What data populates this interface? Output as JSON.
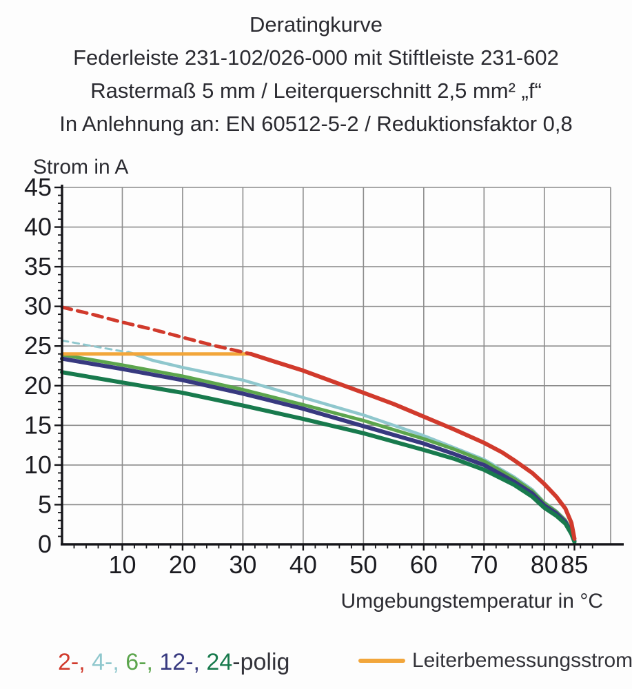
{
  "header": {
    "title": "Deratingkurve",
    "subtitle1": "Federleiste 231-102/026-000 mit Stiftleiste 231-602",
    "subtitle2": "Rastermaß 5 mm / Leiterquerschnitt 2,5 mm² „f“",
    "subtitle3": "In Anlehnung an: EN 60512-5-2 / Reduktionsfaktor 0,8"
  },
  "chart_data": {
    "type": "line",
    "title": "Deratingkurve",
    "xlabel": "Umgebungstemperatur in °C",
    "ylabel": "Strom in A",
    "xlim": [
      0,
      91
    ],
    "ylim": [
      0,
      45
    ],
    "x_major_ticks": [
      10,
      20,
      30,
      40,
      50,
      60,
      70,
      80,
      85
    ],
    "x_gridlines": [
      10,
      20,
      30,
      40,
      50,
      60,
      70,
      80
    ],
    "x_minor_tick_step": 2,
    "y_major_ticks": [
      0,
      5,
      10,
      15,
      20,
      25,
      30,
      35,
      40,
      45
    ],
    "y_minor_tick_step": 1,
    "grid": true,
    "grid_color": "#8c8c8c",
    "axis_color": "#151519",
    "tick_label_color": "#1b1b20",
    "series": [
      {
        "name": "2-polig",
        "color": "#d13a2c",
        "width": 6,
        "z": 1,
        "dash_pattern": "14 9",
        "dashed_width": 5,
        "dashed_points": [
          [
            0,
            29.9
          ],
          [
            5,
            29.0
          ],
          [
            10,
            28.0
          ],
          [
            15,
            27.1
          ],
          [
            20,
            26.1
          ],
          [
            25,
            25.1
          ],
          [
            31.3,
            24.0
          ]
        ],
        "points": [
          [
            31.3,
            24.0
          ],
          [
            35,
            23.1
          ],
          [
            40,
            21.9
          ],
          [
            45,
            20.5
          ],
          [
            50,
            19.1
          ],
          [
            55,
            17.7
          ],
          [
            60,
            16.1
          ],
          [
            65,
            14.5
          ],
          [
            70,
            12.8
          ],
          [
            73,
            11.6
          ],
          [
            75,
            10.6
          ],
          [
            78,
            9.0
          ],
          [
            80,
            7.6
          ],
          [
            82,
            6.0
          ],
          [
            83.5,
            4.5
          ],
          [
            84.5,
            2.7
          ],
          [
            85,
            0.7
          ]
        ]
      },
      {
        "name": "4-polig",
        "color": "#8fc7cd",
        "width": 4.5,
        "z": 0,
        "dash_pattern": "9 7",
        "dashed_width": 3,
        "dashed_points": [
          [
            0,
            25.7
          ],
          [
            5,
            25.0
          ],
          [
            11,
            24.2
          ]
        ],
        "points": [
          [
            11,
            24.2
          ],
          [
            15,
            23.2
          ],
          [
            20,
            22.3
          ],
          [
            25,
            21.5
          ],
          [
            30,
            20.7
          ],
          [
            35,
            19.6
          ],
          [
            40,
            18.5
          ],
          [
            45,
            17.4
          ],
          [
            50,
            16.3
          ],
          [
            55,
            15.0
          ],
          [
            60,
            13.7
          ],
          [
            65,
            12.2
          ],
          [
            70,
            10.7
          ],
          [
            75,
            8.5
          ],
          [
            78,
            6.9
          ],
          [
            80,
            5.3
          ],
          [
            82,
            4.2
          ],
          [
            83.5,
            3.1
          ],
          [
            84.5,
            1.7
          ],
          [
            85,
            0.4
          ]
        ]
      },
      {
        "name": "6-polig",
        "color": "#5ca54d",
        "width": 5,
        "z": 0,
        "points": [
          [
            0,
            23.9
          ],
          [
            10,
            22.6
          ],
          [
            20,
            21.2
          ],
          [
            30,
            19.5
          ],
          [
            40,
            17.6
          ],
          [
            50,
            15.6
          ],
          [
            60,
            13.3
          ],
          [
            65,
            12.0
          ],
          [
            70,
            10.5
          ],
          [
            75,
            8.3
          ],
          [
            78,
            6.7
          ],
          [
            80,
            5.2
          ],
          [
            82,
            4.1
          ],
          [
            83.5,
            3.0
          ],
          [
            84.5,
            1.6
          ],
          [
            85,
            0.4
          ]
        ]
      },
      {
        "name": "12-polig",
        "color": "#37397f",
        "width": 6,
        "z": 0,
        "points": [
          [
            0,
            23.4
          ],
          [
            10,
            22.1
          ],
          [
            20,
            20.7
          ],
          [
            30,
            19.0
          ],
          [
            40,
            17.1
          ],
          [
            50,
            14.9
          ],
          [
            60,
            12.7
          ],
          [
            65,
            11.4
          ],
          [
            70,
            10.0
          ],
          [
            75,
            7.9
          ],
          [
            78,
            6.4
          ],
          [
            80,
            4.9
          ],
          [
            82,
            3.9
          ],
          [
            83.5,
            2.8
          ],
          [
            84.5,
            1.5
          ],
          [
            85,
            0.4
          ]
        ]
      },
      {
        "name": "24-polig",
        "color": "#187a4d",
        "width": 6,
        "z": 0,
        "points": [
          [
            0,
            21.7
          ],
          [
            10,
            20.4
          ],
          [
            20,
            19.1
          ],
          [
            30,
            17.5
          ],
          [
            40,
            15.8
          ],
          [
            50,
            14.0
          ],
          [
            60,
            11.9
          ],
          [
            65,
            10.8
          ],
          [
            70,
            9.4
          ],
          [
            75,
            7.5
          ],
          [
            78,
            6.0
          ],
          [
            80,
            4.6
          ],
          [
            82,
            3.6
          ],
          [
            83.5,
            2.6
          ],
          [
            84.5,
            1.3
          ],
          [
            85,
            0.3
          ]
        ]
      },
      {
        "name": "Leiterbemessungsstrom",
        "color": "#f2a63b",
        "width": 5,
        "z": 0.5,
        "points": [
          [
            0,
            24.0
          ],
          [
            31.3,
            24.0
          ]
        ]
      }
    ]
  },
  "legend": {
    "pole_items": [
      {
        "text": "2-,",
        "color": "#d13a2c"
      },
      {
        "text": "4-,",
        "color": "#8fc7cd"
      },
      {
        "text": "6-,",
        "color": "#5ca54d"
      },
      {
        "text": "12-,",
        "color": "#37397f"
      },
      {
        "text": "24",
        "color": "#187a4d"
      }
    ],
    "pole_suffix": "-polig",
    "pole_suffix_color": "#33333a",
    "rated_current_label": "Leiterbemessungsstrom",
    "rated_current_color": "#f2a63b"
  }
}
